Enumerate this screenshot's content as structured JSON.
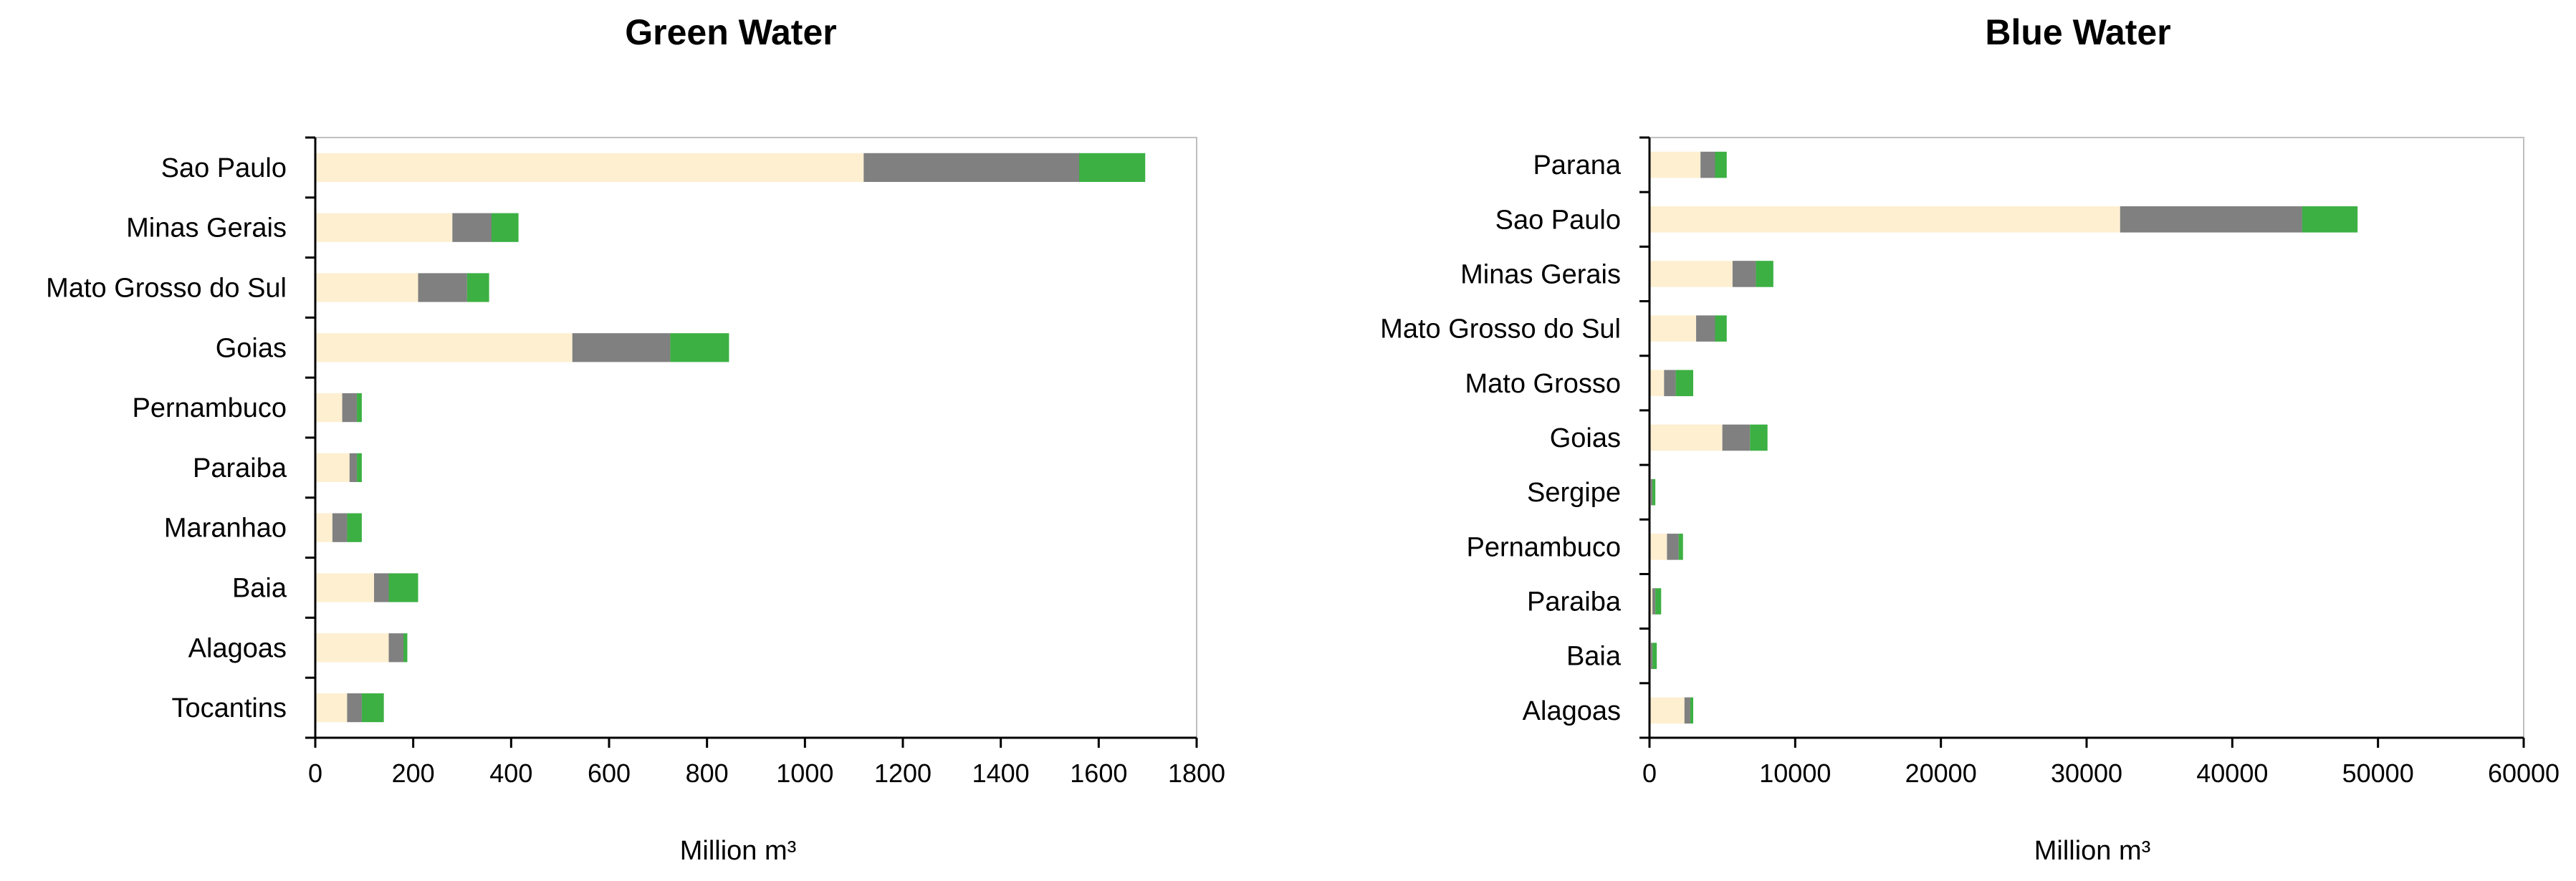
{
  "chart_data": [
    {
      "type": "bar",
      "orientation": "horizontal",
      "stacked": true,
      "title": "Green Water",
      "xlabel": "Million m³",
      "xlim": [
        0,
        1800
      ],
      "xticks": [
        "0",
        "200",
        "400",
        "600",
        "800",
        "1000",
        "1200",
        "1400",
        "1600",
        "1800"
      ],
      "grid": false,
      "categories": [
        "Sao Paulo",
        "Minas Gerais",
        "Mato Grosso do Sul",
        "Goias",
        "Pernambuco",
        "Paraiba",
        "Maranhao",
        "Baia",
        "Alagoas",
        "Tocantins"
      ],
      "series": [
        {
          "color": "#fdefd0",
          "values": [
            1120,
            280,
            210,
            525,
            55,
            70,
            35,
            120,
            150,
            65
          ]
        },
        {
          "color": "#808080",
          "values": [
            440,
            80,
            100,
            200,
            30,
            15,
            30,
            30,
            30,
            30
          ]
        },
        {
          "color": "#3cb043",
          "values": [
            135,
            55,
            45,
            120,
            10,
            10,
            30,
            60,
            8,
            45
          ]
        }
      ]
    },
    {
      "type": "bar",
      "orientation": "horizontal",
      "stacked": true,
      "title": "Blue Water",
      "xlabel": "Million m³",
      "xlim": [
        0,
        60000
      ],
      "xticks": [
        "0",
        "10000",
        "20000",
        "30000",
        "40000",
        "50000",
        "60000"
      ],
      "grid": false,
      "categories": [
        "Parana",
        "Sao Paulo",
        "Minas Gerais",
        "Mato Grosso do Sul",
        "Mato Grosso",
        "Goias",
        "Sergipe",
        "Pernambuco",
        "Paraiba",
        "Baia",
        "Alagoas"
      ],
      "series": [
        {
          "color": "#fdefd0",
          "values": [
            3500,
            32300,
            5700,
            3200,
            1000,
            5000,
            100,
            1200,
            200,
            100,
            2400
          ]
        },
        {
          "color": "#808080",
          "values": [
            1000,
            12500,
            1600,
            1300,
            800,
            1900,
            100,
            800,
            200,
            100,
            400
          ]
        },
        {
          "color": "#3cb043",
          "values": [
            800,
            3800,
            1200,
            800,
            1200,
            1200,
            200,
            300,
            400,
            300,
            200
          ]
        }
      ]
    }
  ]
}
